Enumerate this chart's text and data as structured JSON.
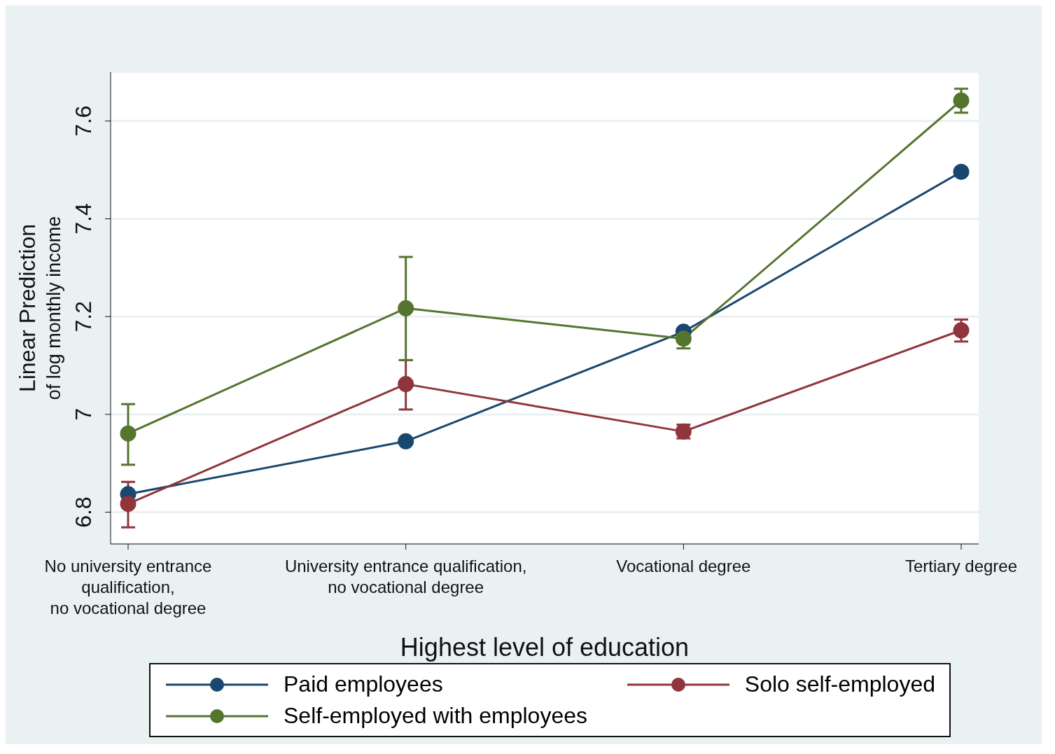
{
  "chart_data": {
    "type": "line",
    "xlabel": "Highest level of education",
    "ylabel": "Linear Prediction\nof log monthly income",
    "categories": [
      "No university entrance\nqualification,\nno vocational degree",
      "University entrance qualification,\nno vocational degree",
      "Vocational degree",
      "Tertiary degree"
    ],
    "series": [
      {
        "name": "Paid employees",
        "color": "#1a476f",
        "values": [
          6.837,
          6.945,
          7.169,
          7.496
        ]
      },
      {
        "name": "Solo self-employed",
        "color": "#90353b",
        "values": [
          6.817,
          7.062,
          6.965,
          7.172
        ],
        "errors": [
          [
            6.769,
            6.862
          ],
          [
            7.01,
            7.111
          ],
          [
            6.951,
            6.979
          ],
          [
            7.149,
            7.194
          ]
        ]
      },
      {
        "name": "Self-employed with employees",
        "color": "#55752f",
        "values": [
          6.961,
          7.217,
          7.155,
          7.642
        ],
        "errors": [
          [
            6.897,
            7.021
          ],
          [
            7.111,
            7.322
          ],
          [
            7.135,
            7.175
          ],
          [
            7.617,
            7.666
          ]
        ]
      }
    ],
    "ylim": [
      6.735,
      7.7
    ],
    "yticks": [
      6.8,
      7,
      7.2,
      7.4,
      7.6
    ],
    "grid": "y",
    "legend": "bottom",
    "marker": "circle",
    "line_style": "solid"
  }
}
